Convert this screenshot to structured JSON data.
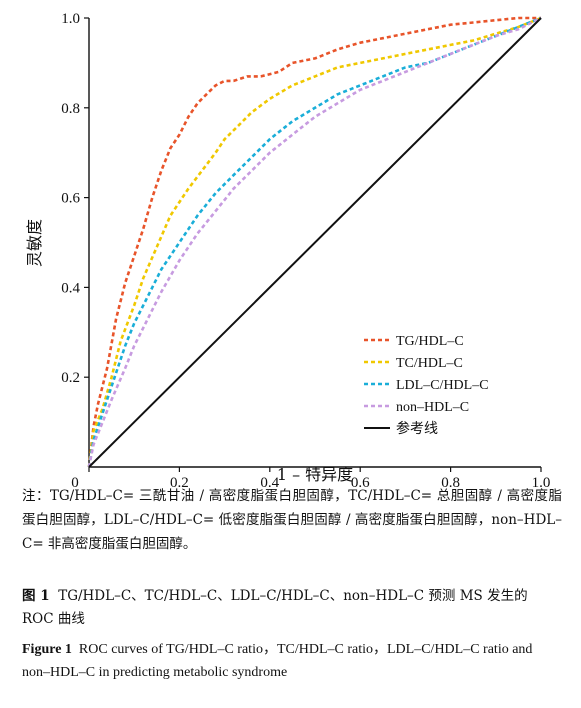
{
  "chart_data": {
    "type": "line",
    "xlabel": "1 – 特异度",
    "ylabel": "灵敏度",
    "xlim": [
      0,
      1
    ],
    "ylim": [
      0,
      1
    ],
    "x_ticks": [
      "0",
      "0.2",
      "0.4",
      "0.6",
      "0.8",
      "1.0"
    ],
    "y_ticks": [
      "0.2",
      "0.4",
      "0.6",
      "0.8",
      "1.0"
    ],
    "grid": false,
    "legend_position": "bottom-right",
    "series": [
      {
        "name": "TG/HDL–C",
        "color": "#e8542a",
        "dash": true,
        "x": [
          0,
          0.01,
          0.02,
          0.04,
          0.06,
          0.08,
          0.1,
          0.12,
          0.14,
          0.16,
          0.18,
          0.2,
          0.22,
          0.24,
          0.26,
          0.28,
          0.3,
          0.32,
          0.35,
          0.38,
          0.42,
          0.45,
          0.5,
          0.55,
          0.6,
          0.65,
          0.7,
          0.75,
          0.8,
          0.85,
          0.9,
          0.95,
          1.0
        ],
        "y": [
          0,
          0.09,
          0.14,
          0.22,
          0.33,
          0.41,
          0.47,
          0.53,
          0.6,
          0.66,
          0.71,
          0.74,
          0.78,
          0.81,
          0.83,
          0.85,
          0.86,
          0.86,
          0.87,
          0.87,
          0.88,
          0.9,
          0.91,
          0.93,
          0.945,
          0.955,
          0.965,
          0.975,
          0.985,
          0.99,
          0.995,
          1.0,
          1.0
        ]
      },
      {
        "name": "TC/HDL–C",
        "color": "#f0c800",
        "dash": true,
        "x": [
          0,
          0.01,
          0.03,
          0.05,
          0.07,
          0.1,
          0.12,
          0.15,
          0.18,
          0.2,
          0.22,
          0.25,
          0.28,
          0.3,
          0.33,
          0.36,
          0.4,
          0.45,
          0.5,
          0.55,
          0.6,
          0.65,
          0.7,
          0.75,
          0.8,
          0.85,
          0.9,
          0.95,
          1.0
        ],
        "y": [
          0,
          0.08,
          0.13,
          0.2,
          0.28,
          0.36,
          0.42,
          0.49,
          0.56,
          0.59,
          0.62,
          0.66,
          0.7,
          0.73,
          0.76,
          0.79,
          0.82,
          0.85,
          0.87,
          0.89,
          0.9,
          0.91,
          0.92,
          0.93,
          0.94,
          0.95,
          0.965,
          0.98,
          1.0
        ]
      },
      {
        "name": "LDL–C/HDL–C",
        "color": "#1aaed8",
        "dash": true,
        "x": [
          0,
          0.01,
          0.03,
          0.05,
          0.08,
          0.1,
          0.13,
          0.16,
          0.2,
          0.24,
          0.28,
          0.32,
          0.36,
          0.4,
          0.45,
          0.5,
          0.55,
          0.6,
          0.65,
          0.7,
          0.75,
          0.8,
          0.85,
          0.9,
          0.95,
          1.0
        ],
        "y": [
          0,
          0.06,
          0.12,
          0.18,
          0.27,
          0.32,
          0.38,
          0.44,
          0.5,
          0.56,
          0.61,
          0.65,
          0.69,
          0.73,
          0.77,
          0.8,
          0.83,
          0.85,
          0.87,
          0.89,
          0.9,
          0.92,
          0.94,
          0.96,
          0.98,
          1.0
        ]
      },
      {
        "name": "non–HDL–C",
        "color": "#c79be0",
        "dash": true,
        "x": [
          0,
          0.01,
          0.03,
          0.05,
          0.08,
          0.1,
          0.13,
          0.16,
          0.2,
          0.24,
          0.28,
          0.32,
          0.36,
          0.4,
          0.45,
          0.5,
          0.55,
          0.6,
          0.65,
          0.7,
          0.75,
          0.8,
          0.85,
          0.9,
          0.95,
          1.0
        ],
        "y": [
          0,
          0.05,
          0.1,
          0.15,
          0.22,
          0.27,
          0.33,
          0.39,
          0.46,
          0.52,
          0.57,
          0.62,
          0.66,
          0.7,
          0.74,
          0.78,
          0.81,
          0.84,
          0.86,
          0.88,
          0.9,
          0.92,
          0.94,
          0.96,
          0.975,
          1.0
        ]
      },
      {
        "name": "参考线",
        "color": "#111111",
        "dash": false,
        "x": [
          0,
          1
        ],
        "y": [
          0,
          1
        ]
      }
    ]
  },
  "note": "注：TG/HDL–C= 三酰甘油 / 高密度脂蛋白胆固醇，TC/HDL–C= 总胆固醇 / 高密度脂蛋白胆固醇，LDL–C/HDL–C= 低密度脂蛋白胆固醇 / 高密度脂蛋白胆固醇，non–HDL–C= 非高密度脂蛋白胆固醇。",
  "caption_cn": {
    "label": "图 1",
    "text": "TG/HDL–C、TC/HDL–C、LDL–C/HDL–C、non–HDL–C 预测 MS 发生的 ROC 曲线"
  },
  "caption_en": {
    "label": "Figure 1",
    "text": "ROC curves of TG/HDL–C ratio，TC/HDL–C ratio，LDL–C/HDL–C ratio and non–HDL–C in predicting metabolic syndrome"
  }
}
